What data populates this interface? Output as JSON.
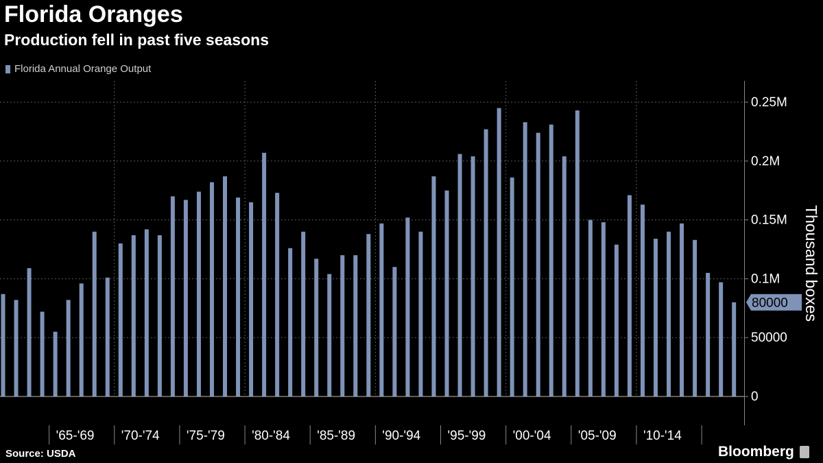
{
  "title": "Florida Oranges",
  "subtitle": "Production fell in past five seasons",
  "legend_label": "Florida Annual Orange Output",
  "source": "Source: USDA",
  "brand": "Bloomberg",
  "colors": {
    "bar": "#7f93b8",
    "grid": "#5a5a5a",
    "axis": "#888888",
    "text": "#ffffff"
  },
  "chart_data": {
    "type": "bar",
    "title": "Florida Oranges",
    "subtitle": "Production fell in past five seasons",
    "ylabel": "Thousand boxes",
    "ylim": [
      0,
      260000
    ],
    "yticks": [
      0,
      50000,
      100000,
      150000,
      200000,
      250000
    ],
    "ytick_labels": [
      "0",
      "50000",
      "0.1M",
      "0.15M",
      "0.2M",
      "0.25M"
    ],
    "x_group_labels": [
      "'65-'69",
      "'70-'74",
      "'75-'79",
      "'80-'84",
      "'85-'89",
      "'90-'94",
      "'95-'99",
      "'00-'04",
      "'05-'09",
      "'10-'14"
    ],
    "last_value_label": "80000",
    "series": [
      {
        "name": "Florida Annual Orange Output",
        "values": [
          87000,
          82000,
          109000,
          72000,
          55000,
          82000,
          96000,
          140000,
          101000,
          130000,
          137000,
          142000,
          137000,
          170000,
          167000,
          174000,
          182000,
          187000,
          169000,
          165000,
          207000,
          173000,
          126000,
          140000,
          117000,
          104000,
          120000,
          120000,
          138000,
          147000,
          110000,
          152000,
          140000,
          187000,
          175000,
          206000,
          204000,
          227000,
          245000,
          186000,
          233000,
          224000,
          231000,
          204000,
          243000,
          150000,
          148000,
          129000,
          171000,
          163000,
          134000,
          140000,
          147000,
          133000,
          105000,
          97000,
          80000
        ]
      }
    ]
  }
}
